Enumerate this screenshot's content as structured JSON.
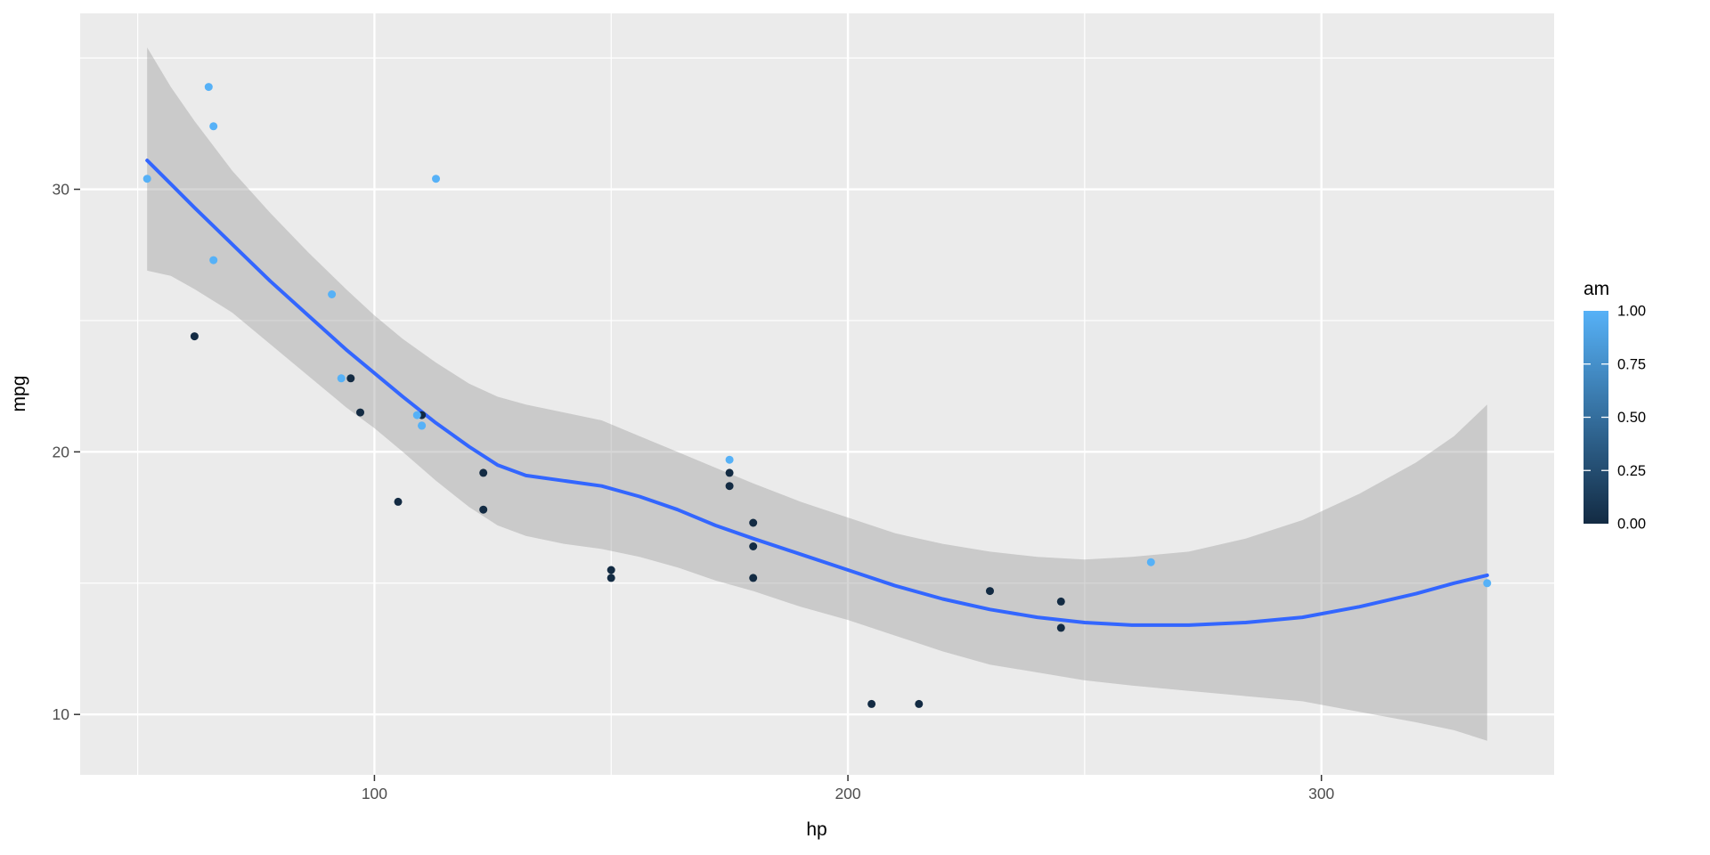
{
  "chart_data": {
    "type": "scatter",
    "title": "",
    "xlabel": "hp",
    "ylabel": "mpg",
    "xlim": [
      37.85,
      349.15
    ],
    "ylim": [
      7.7,
      36.7
    ],
    "x_ticks": [
      {
        "value": 100,
        "label": "100"
      },
      {
        "value": 200,
        "label": "200"
      },
      {
        "value": 300,
        "label": "300"
      }
    ],
    "y_ticks": [
      {
        "value": 10,
        "label": "10"
      },
      {
        "value": 20,
        "label": "20"
      },
      {
        "value": 30,
        "label": "30"
      }
    ],
    "x_minor": [
      50,
      150,
      250
    ],
    "y_minor": [
      15,
      25,
      35
    ],
    "grid": true,
    "legend_position": "right",
    "points": [
      {
        "hp": 110,
        "mpg": 21.0,
        "am": 1
      },
      {
        "hp": 110,
        "mpg": 21.0,
        "am": 1
      },
      {
        "hp": 93,
        "mpg": 22.8,
        "am": 1
      },
      {
        "hp": 110,
        "mpg": 21.4,
        "am": 0
      },
      {
        "hp": 175,
        "mpg": 18.7,
        "am": 0
      },
      {
        "hp": 105,
        "mpg": 18.1,
        "am": 0
      },
      {
        "hp": 245,
        "mpg": 14.3,
        "am": 0
      },
      {
        "hp": 62,
        "mpg": 24.4,
        "am": 0
      },
      {
        "hp": 95,
        "mpg": 22.8,
        "am": 0
      },
      {
        "hp": 123,
        "mpg": 19.2,
        "am": 0
      },
      {
        "hp": 123,
        "mpg": 17.8,
        "am": 0
      },
      {
        "hp": 180,
        "mpg": 16.4,
        "am": 0
      },
      {
        "hp": 180,
        "mpg": 17.3,
        "am": 0
      },
      {
        "hp": 180,
        "mpg": 15.2,
        "am": 0
      },
      {
        "hp": 205,
        "mpg": 10.4,
        "am": 0
      },
      {
        "hp": 215,
        "mpg": 10.4,
        "am": 0
      },
      {
        "hp": 230,
        "mpg": 14.7,
        "am": 0
      },
      {
        "hp": 66,
        "mpg": 32.4,
        "am": 1
      },
      {
        "hp": 52,
        "mpg": 30.4,
        "am": 1
      },
      {
        "hp": 65,
        "mpg": 33.9,
        "am": 1
      },
      {
        "hp": 97,
        "mpg": 21.5,
        "am": 0
      },
      {
        "hp": 150,
        "mpg": 15.5,
        "am": 0
      },
      {
        "hp": 150,
        "mpg": 15.2,
        "am": 0
      },
      {
        "hp": 245,
        "mpg": 13.3,
        "am": 0
      },
      {
        "hp": 175,
        "mpg": 19.2,
        "am": 0
      },
      {
        "hp": 66,
        "mpg": 27.3,
        "am": 1
      },
      {
        "hp": 91,
        "mpg": 26.0,
        "am": 1
      },
      {
        "hp": 113,
        "mpg": 30.4,
        "am": 1
      },
      {
        "hp": 264,
        "mpg": 15.8,
        "am": 1
      },
      {
        "hp": 175,
        "mpg": 19.7,
        "am": 1
      },
      {
        "hp": 335,
        "mpg": 15.0,
        "am": 1
      },
      {
        "hp": 109,
        "mpg": 21.4,
        "am": 1
      }
    ],
    "smooth_line": [
      [
        52,
        31.1
      ],
      [
        57,
        30.2
      ],
      [
        62,
        29.3
      ],
      [
        70,
        27.9
      ],
      [
        78,
        26.5
      ],
      [
        86,
        25.2
      ],
      [
        94,
        23.9
      ],
      [
        100,
        23.0
      ],
      [
        106,
        22.1
      ],
      [
        113,
        21.1
      ],
      [
        120,
        20.2
      ],
      [
        126,
        19.5
      ],
      [
        132,
        19.1
      ],
      [
        140,
        18.9
      ],
      [
        148,
        18.7
      ],
      [
        156,
        18.3
      ],
      [
        164,
        17.8
      ],
      [
        172,
        17.2
      ],
      [
        180,
        16.7
      ],
      [
        190,
        16.1
      ],
      [
        200,
        15.5
      ],
      [
        210,
        14.9
      ],
      [
        220,
        14.4
      ],
      [
        230,
        14.0
      ],
      [
        240,
        13.7
      ],
      [
        250,
        13.5
      ],
      [
        260,
        13.4
      ],
      [
        272,
        13.4
      ],
      [
        284,
        13.5
      ],
      [
        296,
        13.7
      ],
      [
        308,
        14.1
      ],
      [
        320,
        14.6
      ],
      [
        328,
        15.0
      ],
      [
        335,
        15.3
      ]
    ],
    "ribbon_upper": [
      [
        52,
        35.4
      ],
      [
        57,
        33.9
      ],
      [
        62,
        32.6
      ],
      [
        70,
        30.7
      ],
      [
        78,
        29.1
      ],
      [
        86,
        27.6
      ],
      [
        94,
        26.2
      ],
      [
        100,
        25.2
      ],
      [
        106,
        24.3
      ],
      [
        113,
        23.4
      ],
      [
        120,
        22.6
      ],
      [
        126,
        22.1
      ],
      [
        132,
        21.8
      ],
      [
        140,
        21.5
      ],
      [
        148,
        21.2
      ],
      [
        156,
        20.6
      ],
      [
        164,
        20.0
      ],
      [
        172,
        19.4
      ],
      [
        180,
        18.8
      ],
      [
        190,
        18.1
      ],
      [
        200,
        17.5
      ],
      [
        210,
        16.9
      ],
      [
        220,
        16.5
      ],
      [
        230,
        16.2
      ],
      [
        240,
        16.0
      ],
      [
        250,
        15.9
      ],
      [
        260,
        16.0
      ],
      [
        272,
        16.2
      ],
      [
        284,
        16.7
      ],
      [
        296,
        17.4
      ],
      [
        308,
        18.4
      ],
      [
        320,
        19.6
      ],
      [
        328,
        20.6
      ],
      [
        335,
        21.8
      ]
    ],
    "ribbon_lower": [
      [
        52,
        26.9
      ],
      [
        57,
        26.7
      ],
      [
        62,
        26.2
      ],
      [
        70,
        25.3
      ],
      [
        78,
        24.1
      ],
      [
        86,
        22.9
      ],
      [
        94,
        21.7
      ],
      [
        100,
        20.9
      ],
      [
        106,
        20.0
      ],
      [
        113,
        18.9
      ],
      [
        120,
        17.9
      ],
      [
        126,
        17.2
      ],
      [
        132,
        16.8
      ],
      [
        140,
        16.5
      ],
      [
        148,
        16.3
      ],
      [
        156,
        16.0
      ],
      [
        164,
        15.6
      ],
      [
        172,
        15.1
      ],
      [
        180,
        14.7
      ],
      [
        190,
        14.1
      ],
      [
        200,
        13.6
      ],
      [
        210,
        13.0
      ],
      [
        220,
        12.4
      ],
      [
        230,
        11.9
      ],
      [
        240,
        11.6
      ],
      [
        250,
        11.3
      ],
      [
        260,
        11.1
      ],
      [
        272,
        10.9
      ],
      [
        284,
        10.7
      ],
      [
        296,
        10.5
      ],
      [
        308,
        10.1
      ],
      [
        320,
        9.7
      ],
      [
        328,
        9.4
      ],
      [
        335,
        9.0
      ]
    ],
    "legend": {
      "title": "am",
      "breaks": [
        {
          "value": 1.0,
          "label": "1.00"
        },
        {
          "value": 0.75,
          "label": "0.75"
        },
        {
          "value": 0.5,
          "label": "0.50"
        },
        {
          "value": 0.25,
          "label": "0.25"
        },
        {
          "value": 0.0,
          "label": "0.00"
        }
      ],
      "gradient_low": "#132B43",
      "gradient_mid": "#346E9D",
      "gradient_high": "#56B1F7"
    },
    "colors": {
      "point_low": "#132B43",
      "point_high": "#56B1F7",
      "smooth_line": "#3366FF",
      "ribbon": "rgba(153,153,153,0.4)",
      "panel_background": "#EBEBEB",
      "grid": "#FFFFFF",
      "tick_mark": "#333333",
      "tick_text": "#4D4D4D",
      "axis_title_text": "#000000"
    }
  }
}
